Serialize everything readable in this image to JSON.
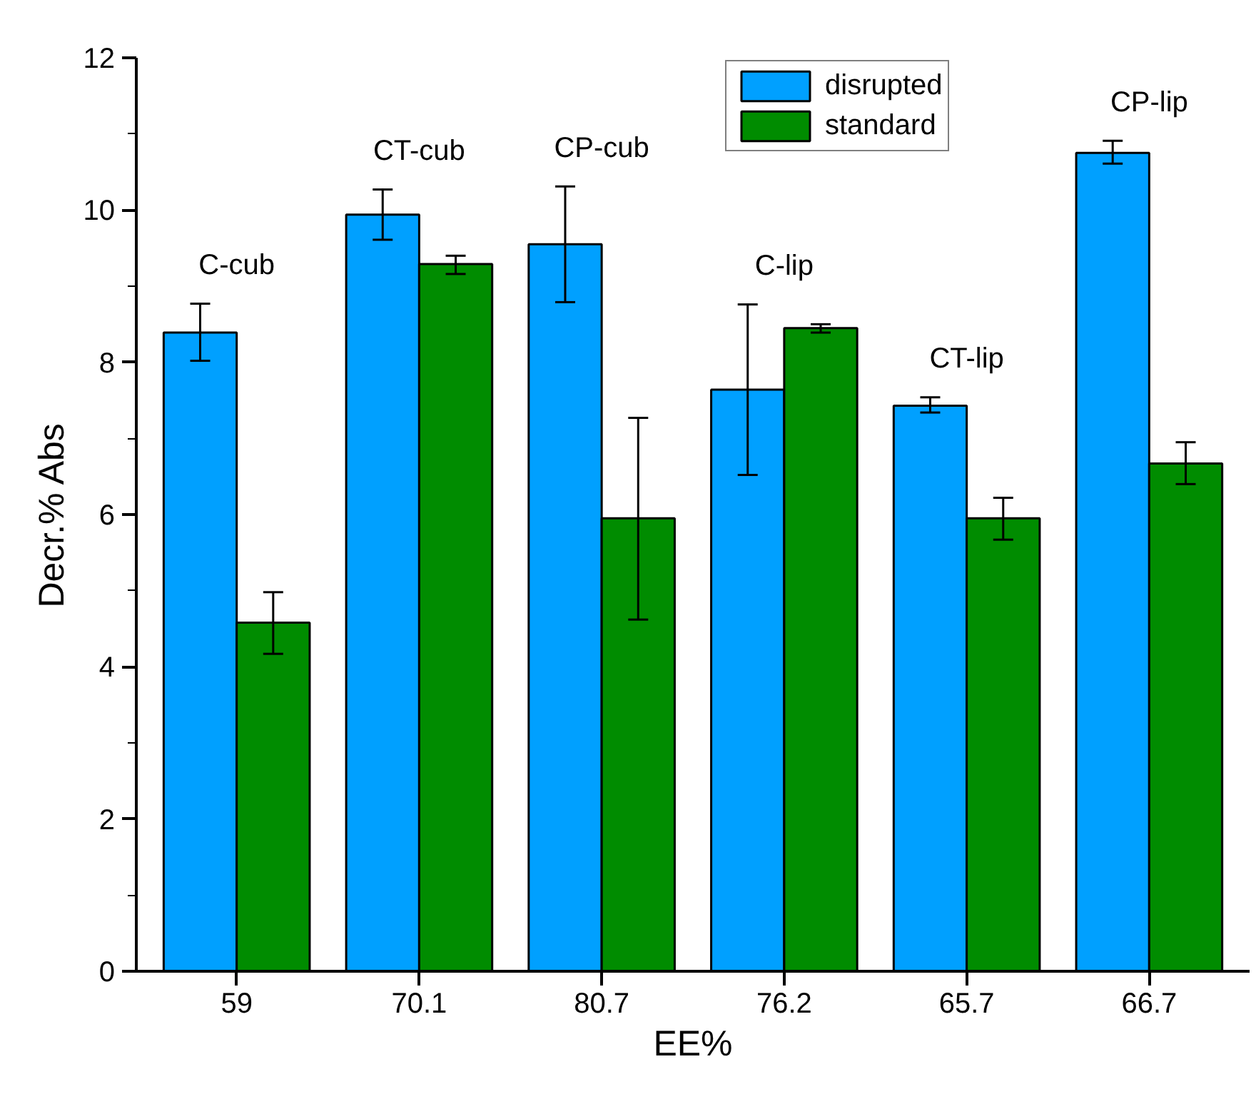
{
  "chart_data": {
    "type": "bar",
    "xlabel": "EE%",
    "ylabel": "Decr.% Abs",
    "categories": [
      "59",
      "70.1",
      "80.7",
      "76.2",
      "65.7",
      "66.7"
    ],
    "series": [
      {
        "name": "disrupted",
        "color": "#00a0ff",
        "values": [
          8.39,
          9.94,
          9.55,
          7.64,
          7.43,
          10.75
        ],
        "errors": [
          [
            8.02,
            8.77
          ],
          [
            9.61,
            10.27
          ],
          [
            8.79,
            10.31
          ],
          [
            6.52,
            8.76
          ],
          [
            7.34,
            7.54
          ],
          [
            10.61,
            10.91
          ]
        ]
      },
      {
        "name": "standard",
        "color": "#008c00",
        "values": [
          4.58,
          9.29,
          5.95,
          8.45,
          5.95,
          6.67
        ],
        "errors": [
          [
            4.17,
            4.98
          ],
          [
            9.16,
            9.4
          ],
          [
            4.62,
            7.27
          ],
          [
            8.39,
            8.5
          ],
          [
            5.67,
            6.22
          ],
          [
            6.4,
            6.95
          ]
        ]
      }
    ],
    "ylim": [
      0,
      12
    ],
    "yticks": [
      0,
      2,
      4,
      6,
      8,
      10,
      12
    ],
    "grid": false,
    "legend": "top",
    "annotations": [
      "C-cub",
      "CT-cub",
      "CP-cub",
      "C-lip",
      "CT-lip",
      "CP-lip"
    ]
  }
}
